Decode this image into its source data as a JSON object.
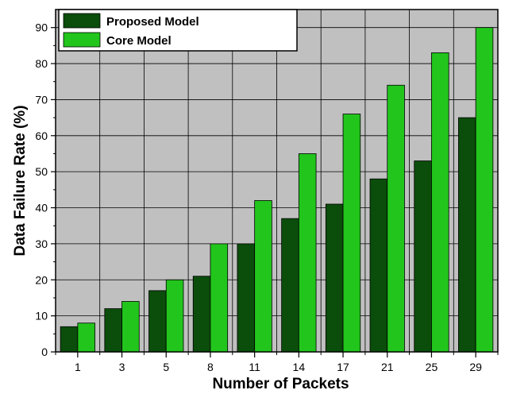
{
  "chart_data": {
    "type": "bar",
    "title": "",
    "xlabel": "Number of Packets",
    "ylabel": "Data Failure Rate (%)",
    "categories": [
      "1",
      "3",
      "5",
      "8",
      "11",
      "14",
      "17",
      "21",
      "25",
      "29"
    ],
    "series": [
      {
        "name": "Proposed Model",
        "color": "#0b4d0b",
        "values": [
          7,
          12,
          17,
          21,
          30,
          37,
          41,
          48,
          53,
          65
        ]
      },
      {
        "name": "Core Model",
        "color": "#22c51c",
        "values": [
          8,
          14,
          20,
          30,
          42,
          55,
          66,
          74,
          83,
          90
        ]
      }
    ],
    "ylim": [
      0,
      95
    ],
    "yticks": [
      0,
      10,
      20,
      30,
      40,
      50,
      60,
      70,
      80,
      90
    ],
    "grid": true,
    "plot_background": "#c0c0c0",
    "legend_position": "top-left"
  }
}
